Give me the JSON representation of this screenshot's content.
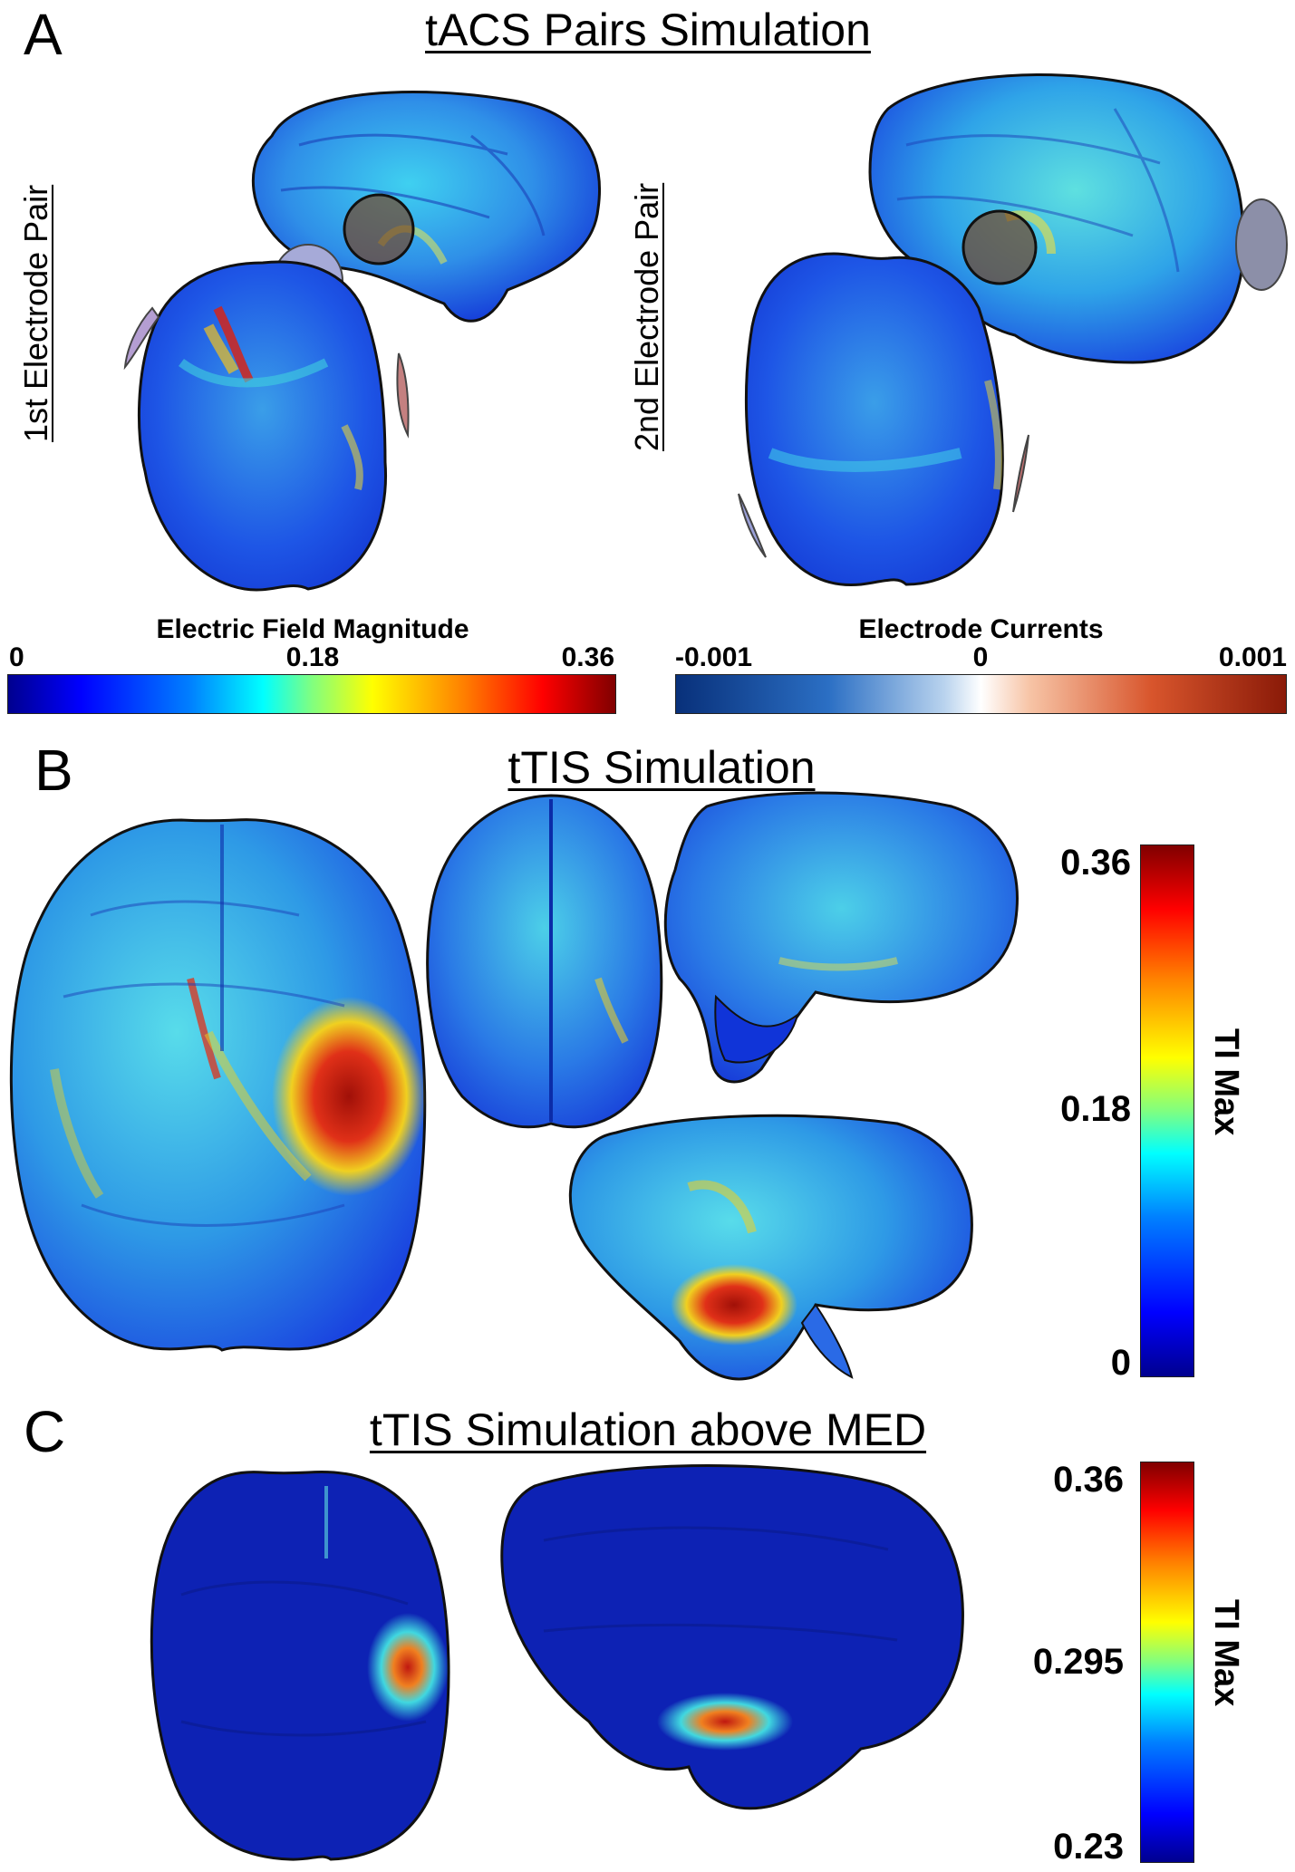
{
  "panels": {
    "A": {
      "letter": "A",
      "title": "tACS Pairs Simulation",
      "label_first_pair": "1st Electrode Pair",
      "label_second_pair": "2nd Electrode Pair",
      "colorbar_field": {
        "title": "Electric Field Magnitude",
        "ticks": [
          "0",
          "0.18",
          "0.36"
        ],
        "colormap": "jet"
      },
      "colorbar_currents": {
        "title": "Electrode Currents",
        "ticks": [
          "-0.001",
          "0",
          "0.001"
        ],
        "colormap": "blue-white-red"
      }
    },
    "B": {
      "letter": "B",
      "title": "tTIS Simulation",
      "colorbar": {
        "title": "TI Max",
        "ticks": [
          "0.36",
          "0.18",
          "0"
        ],
        "colormap": "jet"
      }
    },
    "C": {
      "letter": "C",
      "title": "tTIS Simulation above MED",
      "colorbar": {
        "title": "TI Max",
        "ticks": [
          "0.36",
          "0.295",
          "0.23"
        ],
        "colormap": "jet"
      }
    }
  },
  "colors": {
    "brain_blue": "#1f4fe0",
    "brain_cyan": "#2bb8e8",
    "brain_dark": "#0a1fa8",
    "hot_red": "#c81a10",
    "hot_yellow": "#f0d020",
    "electrode_blue": "#9ea4d6",
    "electrode_red": "#b06060"
  }
}
